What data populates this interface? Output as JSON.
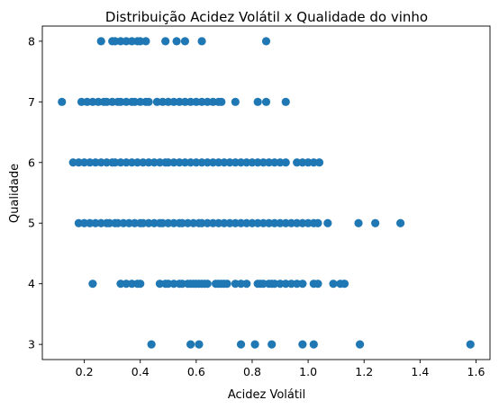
{
  "chart_data": {
    "type": "scatter",
    "title": "Distribuição Acidez Volátil x Qualidade do vinho",
    "xlabel": "Acidez Volátil",
    "ylabel": "Qualidade",
    "xlim": [
      0.05,
      1.65
    ],
    "ylim": [
      2.75,
      8.25
    ],
    "xticks": [
      {
        "value": 0.2,
        "label": "0.2"
      },
      {
        "value": 0.4,
        "label": "0.4"
      },
      {
        "value": 0.6,
        "label": "0.6"
      },
      {
        "value": 0.8,
        "label": "0.8"
      },
      {
        "value": 1.0,
        "label": "1.0"
      },
      {
        "value": 1.2,
        "label": "1.2"
      },
      {
        "value": 1.4,
        "label": "1.4"
      },
      {
        "value": 1.6,
        "label": "1.6"
      }
    ],
    "yticks": [
      {
        "value": 3,
        "label": "3"
      },
      {
        "value": 4,
        "label": "4"
      },
      {
        "value": 5,
        "label": "5"
      },
      {
        "value": 6,
        "label": "6"
      },
      {
        "value": 7,
        "label": "7"
      },
      {
        "value": 8,
        "label": "8"
      }
    ],
    "grid": false,
    "marker_color": "#1f77b4",
    "series": [
      {
        "points": [
          [
            0.44,
            3
          ],
          [
            0.58,
            3
          ],
          [
            0.61,
            3
          ],
          [
            0.76,
            3
          ],
          [
            0.81,
            3
          ],
          [
            0.87,
            3
          ],
          [
            0.98,
            3
          ],
          [
            1.02,
            3
          ],
          [
            1.185,
            3
          ],
          [
            1.58,
            3
          ],
          [
            0.23,
            4
          ],
          [
            0.33,
            4
          ],
          [
            0.35,
            4
          ],
          [
            0.37,
            4
          ],
          [
            0.39,
            4
          ],
          [
            0.4,
            4
          ],
          [
            0.47,
            4
          ],
          [
            0.49,
            4
          ],
          [
            0.5,
            4
          ],
          [
            0.52,
            4
          ],
          [
            0.54,
            4
          ],
          [
            0.55,
            4
          ],
          [
            0.57,
            4
          ],
          [
            0.58,
            4
          ],
          [
            0.59,
            4
          ],
          [
            0.6,
            4
          ],
          [
            0.61,
            4
          ],
          [
            0.62,
            4
          ],
          [
            0.63,
            4
          ],
          [
            0.64,
            4
          ],
          [
            0.67,
            4
          ],
          [
            0.68,
            4
          ],
          [
            0.69,
            4
          ],
          [
            0.7,
            4
          ],
          [
            0.71,
            4
          ],
          [
            0.74,
            4
          ],
          [
            0.76,
            4
          ],
          [
            0.78,
            4
          ],
          [
            0.82,
            4
          ],
          [
            0.83,
            4
          ],
          [
            0.84,
            4
          ],
          [
            0.86,
            4
          ],
          [
            0.87,
            4
          ],
          [
            0.88,
            4
          ],
          [
            0.9,
            4
          ],
          [
            0.92,
            4
          ],
          [
            0.94,
            4
          ],
          [
            0.96,
            4
          ],
          [
            0.98,
            4
          ],
          [
            1.02,
            4
          ],
          [
            1.035,
            4
          ],
          [
            1.09,
            4
          ],
          [
            1.115,
            4
          ],
          [
            1.13,
            4
          ],
          [
            0.18,
            5
          ],
          [
            0.2,
            5
          ],
          [
            0.22,
            5
          ],
          [
            0.24,
            5
          ],
          [
            0.26,
            5
          ],
          [
            0.28,
            5
          ],
          [
            0.29,
            5
          ],
          [
            0.31,
            5
          ],
          [
            0.32,
            5
          ],
          [
            0.34,
            5
          ],
          [
            0.36,
            5
          ],
          [
            0.38,
            5
          ],
          [
            0.4,
            5
          ],
          [
            0.41,
            5
          ],
          [
            0.43,
            5
          ],
          [
            0.45,
            5
          ],
          [
            0.47,
            5
          ],
          [
            0.48,
            5
          ],
          [
            0.5,
            5
          ],
          [
            0.52,
            5
          ],
          [
            0.54,
            5
          ],
          [
            0.55,
            5
          ],
          [
            0.57,
            5
          ],
          [
            0.59,
            5
          ],
          [
            0.61,
            5
          ],
          [
            0.62,
            5
          ],
          [
            0.64,
            5
          ],
          [
            0.66,
            5
          ],
          [
            0.68,
            5
          ],
          [
            0.7,
            5
          ],
          [
            0.72,
            5
          ],
          [
            0.74,
            5
          ],
          [
            0.76,
            5
          ],
          [
            0.78,
            5
          ],
          [
            0.8,
            5
          ],
          [
            0.82,
            5
          ],
          [
            0.84,
            5
          ],
          [
            0.86,
            5
          ],
          [
            0.88,
            5
          ],
          [
            0.9,
            5
          ],
          [
            0.92,
            5
          ],
          [
            0.94,
            5
          ],
          [
            0.96,
            5
          ],
          [
            0.98,
            5
          ],
          [
            1.0,
            5
          ],
          [
            1.02,
            5
          ],
          [
            1.035,
            5
          ],
          [
            1.07,
            5
          ],
          [
            1.18,
            5
          ],
          [
            1.24,
            5
          ],
          [
            1.33,
            5
          ],
          [
            0.16,
            6
          ],
          [
            0.18,
            6
          ],
          [
            0.2,
            6
          ],
          [
            0.22,
            6
          ],
          [
            0.24,
            6
          ],
          [
            0.26,
            6
          ],
          [
            0.28,
            6
          ],
          [
            0.3,
            6
          ],
          [
            0.31,
            6
          ],
          [
            0.33,
            6
          ],
          [
            0.35,
            6
          ],
          [
            0.37,
            6
          ],
          [
            0.39,
            6
          ],
          [
            0.41,
            6
          ],
          [
            0.43,
            6
          ],
          [
            0.45,
            6
          ],
          [
            0.47,
            6
          ],
          [
            0.49,
            6
          ],
          [
            0.5,
            6
          ],
          [
            0.52,
            6
          ],
          [
            0.54,
            6
          ],
          [
            0.56,
            6
          ],
          [
            0.58,
            6
          ],
          [
            0.6,
            6
          ],
          [
            0.62,
            6
          ],
          [
            0.64,
            6
          ],
          [
            0.66,
            6
          ],
          [
            0.68,
            6
          ],
          [
            0.7,
            6
          ],
          [
            0.72,
            6
          ],
          [
            0.74,
            6
          ],
          [
            0.76,
            6
          ],
          [
            0.78,
            6
          ],
          [
            0.8,
            6
          ],
          [
            0.82,
            6
          ],
          [
            0.84,
            6
          ],
          [
            0.86,
            6
          ],
          [
            0.88,
            6
          ],
          [
            0.9,
            6
          ],
          [
            0.92,
            6
          ],
          [
            0.96,
            6
          ],
          [
            0.98,
            6
          ],
          [
            1.0,
            6
          ],
          [
            1.02,
            6
          ],
          [
            1.04,
            6
          ],
          [
            0.12,
            7
          ],
          [
            0.19,
            7
          ],
          [
            0.21,
            7
          ],
          [
            0.23,
            7
          ],
          [
            0.25,
            7
          ],
          [
            0.27,
            7
          ],
          [
            0.28,
            7
          ],
          [
            0.3,
            7
          ],
          [
            0.32,
            7
          ],
          [
            0.33,
            7
          ],
          [
            0.35,
            7
          ],
          [
            0.37,
            7
          ],
          [
            0.38,
            7
          ],
          [
            0.4,
            7
          ],
          [
            0.42,
            7
          ],
          [
            0.43,
            7
          ],
          [
            0.46,
            7
          ],
          [
            0.48,
            7
          ],
          [
            0.5,
            7
          ],
          [
            0.52,
            7
          ],
          [
            0.54,
            7
          ],
          [
            0.56,
            7
          ],
          [
            0.58,
            7
          ],
          [
            0.6,
            7
          ],
          [
            0.62,
            7
          ],
          [
            0.64,
            7
          ],
          [
            0.66,
            7
          ],
          [
            0.68,
            7
          ],
          [
            0.69,
            7
          ],
          [
            0.74,
            7
          ],
          [
            0.82,
            7
          ],
          [
            0.85,
            7
          ],
          [
            0.92,
            7
          ],
          [
            0.26,
            8
          ],
          [
            0.3,
            8
          ],
          [
            0.31,
            8
          ],
          [
            0.33,
            8
          ],
          [
            0.35,
            8
          ],
          [
            0.37,
            8
          ],
          [
            0.39,
            8
          ],
          [
            0.4,
            8
          ],
          [
            0.42,
            8
          ],
          [
            0.49,
            8
          ],
          [
            0.53,
            8
          ],
          [
            0.56,
            8
          ],
          [
            0.62,
            8
          ],
          [
            0.85,
            8
          ]
        ]
      }
    ]
  }
}
